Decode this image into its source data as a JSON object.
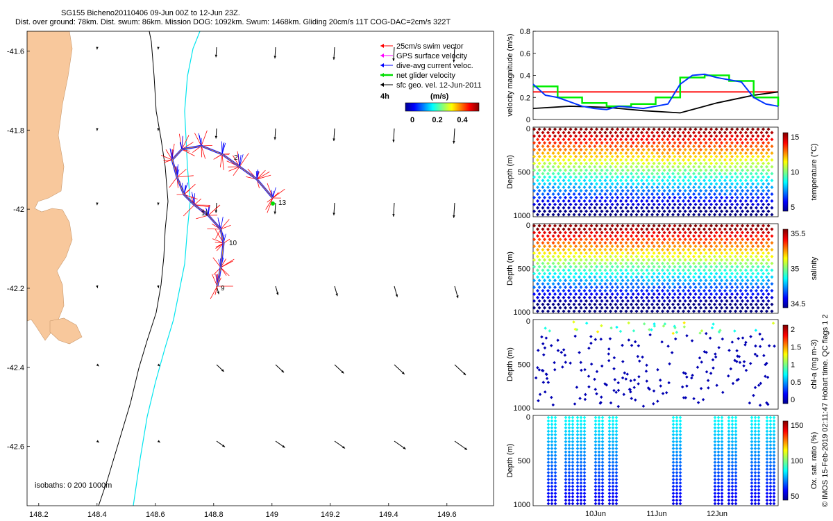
{
  "header": {
    "title_line1": "SG155 Bicheno20110406 09-Jun 00Z to 12-Jun 23Z.",
    "title_line2": "Dist. over ground: 78km. Dist. swum: 86km. Mission DOG: 1092km. Swum: 1468km. Gliding 20cm/s 11T COG-DAC=2cm/s 322T"
  },
  "map": {
    "x_ticks": [
      "148.2",
      "148.4",
      "148.6",
      "148.8",
      "149",
      "149.2",
      "149.4",
      "149.6"
    ],
    "y_ticks": [
      "-41.6",
      "-41.8",
      "-42",
      "-42.2",
      "-42.4",
      "-42.6"
    ],
    "lon_range": [
      148.16,
      149.76
    ],
    "lat_range": [
      -42.75,
      -41.55
    ],
    "legend": [
      {
        "label": "25cm/s swim vector",
        "color": "#ff0000"
      },
      {
        "label": "GPS surface velocity",
        "color": "#ff00ff"
      },
      {
        "label": "dive-avg current veloc.",
        "color": "#0000ff"
      },
      {
        "label": "net glider velocity",
        "color": "#00dd00"
      },
      {
        "label": "sfc geo. vel. 12-Jun-2011",
        "color": "#000000"
      }
    ],
    "colorbar_label": "(m/s)",
    "colorbar_extra": "4h",
    "colorbar_ticks": [
      "0",
      "0.2",
      "0.4"
    ],
    "isobaths_label": "isobaths: 0   200  1000m",
    "track_labels": [
      "2",
      "13",
      "11",
      "10",
      "9"
    ],
    "colors": {
      "land": "#f8c89c",
      "isobath_200": "#000000",
      "isobath_1000": "#00e5ee"
    }
  },
  "velocity_panel": {
    "ylabel": "velocity magnitude (m/s)",
    "y_ticks": [
      "0",
      "0.2",
      "0.4",
      "0.6",
      "0.8"
    ],
    "ylim": [
      0,
      0.8
    ],
    "series": [
      {
        "color": "#ff0000"
      },
      {
        "color": "#000000"
      },
      {
        "color": "#00ee00"
      },
      {
        "color": "#0033ff"
      }
    ]
  },
  "section_panels": [
    {
      "ylabel": "Depth (m)",
      "y_ticks": [
        "0",
        "500",
        "1000"
      ],
      "cb_label": "temperature (°C)",
      "cb_ticks": [
        "15",
        "10",
        "5"
      ]
    },
    {
      "ylabel": "Depth (m)",
      "y_ticks": [
        "0",
        "500",
        "1000"
      ],
      "cb_label": "salinity",
      "cb_ticks": [
        "35.5",
        "35",
        "34.5"
      ]
    },
    {
      "ylabel": "Depth (m)",
      "y_ticks": [
        "0",
        "500",
        "1000"
      ],
      "cb_label": "chl-a (mg m-3)",
      "cb_ticks": [
        "2",
        "1.5",
        "1",
        "0.5",
        "0"
      ]
    },
    {
      "ylabel": "Depth (m)",
      "y_ticks": [
        "0",
        "500",
        "1000"
      ],
      "cb_label": "Ox. sat. ratio (%)",
      "cb_ticks": [
        "150",
        "100",
        "50"
      ]
    }
  ],
  "time_ticks": [
    "10Jun",
    "11Jun",
    "12Jun"
  ],
  "side_note": "© IMOS 15-Feb-2019 02:11:47 Hobart time. QC flags 1  2",
  "chart_data": [
    {
      "type": "line",
      "title": "",
      "xlabel": "",
      "ylabel": "velocity magnitude (m/s)",
      "ylim": [
        0,
        0.8
      ],
      "x_ticks": [
        "10Jun",
        "11Jun",
        "12Jun"
      ],
      "series": [
        {
          "x": [
            0,
            1
          ],
          "values": [
            0.25,
            0.25
          ]
        },
        {
          "x": [
            0,
            0.15,
            0.3,
            0.45,
            0.6,
            0.75,
            0.9,
            1
          ],
          "values": [
            0.1,
            0.12,
            0.11,
            0.08,
            0.06,
            0.15,
            0.22,
            0.25
          ]
        },
        {
          "x": [
            0,
            0.1,
            0.2,
            0.3,
            0.4,
            0.5,
            0.6,
            0.7,
            0.8,
            0.9,
            1
          ],
          "values": [
            0.3,
            0.2,
            0.15,
            0.12,
            0.14,
            0.2,
            0.38,
            0.4,
            0.35,
            0.2,
            0.12
          ]
        },
        {
          "x": [
            0,
            0.05,
            0.1,
            0.15,
            0.2,
            0.25,
            0.3,
            0.35,
            0.4,
            0.45,
            0.5,
            0.55,
            0.6,
            0.65,
            0.7,
            0.75,
            0.8,
            0.85,
            0.9,
            0.95,
            1
          ],
          "values": [
            0.32,
            0.22,
            0.2,
            0.16,
            0.12,
            0.1,
            0.09,
            0.12,
            0.11,
            0.1,
            0.12,
            0.14,
            0.32,
            0.4,
            0.41,
            0.38,
            0.36,
            0.34,
            0.2,
            0.14,
            0.12
          ]
        }
      ]
    }
  ]
}
